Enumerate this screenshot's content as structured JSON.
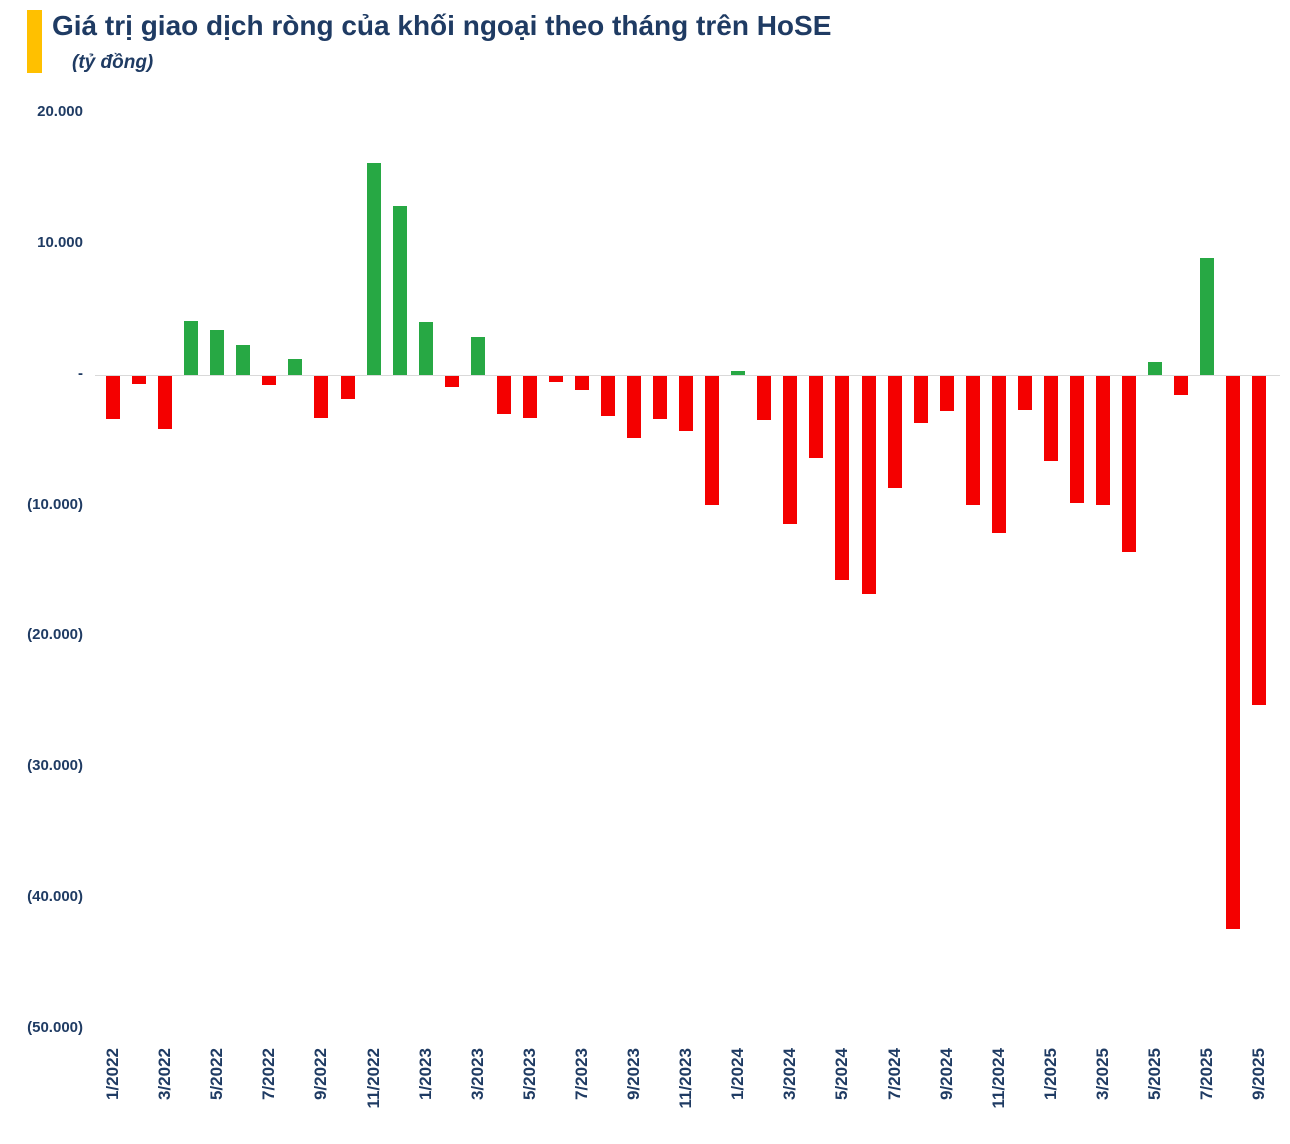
{
  "header": {
    "title": "Giá trị giao dịch ròng của khối ngoại theo tháng trên HoSE",
    "subtitle": "(tỷ đồng)",
    "accent_color": "#FFC000",
    "title_color": "#1F3B63"
  },
  "chart_data": {
    "type": "bar",
    "title": "Giá trị giao dịch ròng của khối ngoại theo tháng trên HoSE",
    "unit": "tỷ đồng",
    "categories": [
      "1/2022",
      "2/2022",
      "3/2022",
      "4/2022",
      "5/2022",
      "6/2022",
      "7/2022",
      "8/2022",
      "9/2022",
      "10/2022",
      "11/2022",
      "12/2022",
      "1/2023",
      "2/2023",
      "3/2023",
      "4/2023",
      "5/2023",
      "6/2023",
      "7/2023",
      "8/2023",
      "9/2023",
      "10/2023",
      "11/2023",
      "12/2023",
      "1/2024",
      "2/2024",
      "3/2024",
      "4/2024",
      "5/2024",
      "6/2024",
      "7/2024",
      "8/2024",
      "9/2024",
      "10/2024",
      "11/2024",
      "12/2024",
      "1/2025",
      "2/2025",
      "3/2025",
      "4/2025",
      "5/2025",
      "6/2025",
      "7/2025",
      "8/2025",
      "9/2025"
    ],
    "values": [
      -3300,
      -600,
      -4100,
      4100,
      3400,
      2300,
      -700,
      1200,
      -3200,
      -1800,
      16200,
      12900,
      4000,
      -900,
      2900,
      -2900,
      -3200,
      -500,
      -1100,
      -3100,
      -4800,
      -3300,
      -4200,
      -9900,
      300,
      -3400,
      -11300,
      -6300,
      -15600,
      -16700,
      -8600,
      -3600,
      -2700,
      -9900,
      -12000,
      -2600,
      -6500,
      -9700,
      -9900,
      -13500,
      1000,
      -1500,
      8900,
      -42300,
      -25200
    ],
    "x_label_every": 2,
    "x_tick_labels": [
      "1/2022",
      "3/2022",
      "5/2022",
      "7/2022",
      "9/2022",
      "11/2022",
      "1/2023",
      "3/2023",
      "5/2023",
      "7/2023",
      "9/2023",
      "11/2023",
      "1/2024",
      "3/2024",
      "5/2024",
      "7/2024",
      "9/2024",
      "11/2024",
      "1/2025",
      "3/2025",
      "5/2025",
      "7/2025",
      "9/2025"
    ],
    "y_ticks": [
      {
        "label": "20.000",
        "value": 20000
      },
      {
        "label": "10.000",
        "value": 10000
      },
      {
        "label": "-",
        "value": 0
      },
      {
        "label": "(10.000)",
        "value": -10000
      },
      {
        "label": "(20.000)",
        "value": -20000
      },
      {
        "label": "(30.000)",
        "value": -30000
      },
      {
        "label": "(40.000)",
        "value": -40000
      },
      {
        "label": "(50.000)",
        "value": -50000
      }
    ],
    "ylim": [
      -50000,
      20000
    ],
    "grid": "zero-line-only",
    "legend_position": "none",
    "positive_color": "#27A844",
    "negative_color": "#F40000",
    "axis_color": "#1F3B63"
  }
}
